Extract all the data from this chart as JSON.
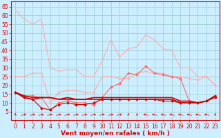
{
  "x": [
    0,
    1,
    2,
    3,
    4,
    5,
    6,
    7,
    8,
    9,
    10,
    11,
    12,
    13,
    14,
    15,
    16,
    17,
    18,
    19,
    20,
    21,
    22,
    23
  ],
  "series": [
    {
      "name": "max_gust",
      "color": "#ffaaaa",
      "linewidth": 0.8,
      "marker": null,
      "markersize": 0,
      "zorder": 2,
      "values": [
        63,
        58,
        55,
        58,
        30,
        28,
        29,
        29,
        25,
        25,
        34,
        46,
        36,
        41,
        42,
        49,
        46,
        41,
        40,
        30,
        30,
        25,
        25,
        20
      ]
    },
    {
      "name": "avg_wind_high",
      "color": "#ffaaaa",
      "linewidth": 0.8,
      "marker": "D",
      "markersize": 1.5,
      "zorder": 2,
      "values": [
        25,
        25,
        27,
        27,
        10,
        16,
        17,
        17,
        16,
        16,
        25,
        25,
        24,
        24,
        27,
        28,
        27,
        27,
        25,
        25,
        24,
        23,
        25,
        20
      ]
    },
    {
      "name": "avg_wind_med",
      "color": "#ff6666",
      "linewidth": 0.8,
      "marker": "D",
      "markersize": 2,
      "zorder": 3,
      "values": [
        16,
        14,
        14,
        13,
        6,
        10,
        11,
        10,
        10,
        9,
        13,
        19,
        21,
        27,
        26,
        31,
        27,
        26,
        25,
        24,
        11,
        10,
        11,
        14
      ]
    },
    {
      "name": "wind_steady1",
      "color": "#cc0000",
      "linewidth": 1.2,
      "marker": null,
      "markersize": 0,
      "zorder": 4,
      "values": [
        16,
        14,
        13,
        13,
        13,
        12,
        13,
        12,
        12,
        13,
        13,
        13,
        13,
        13,
        13,
        13,
        13,
        13,
        13,
        11,
        11,
        10,
        11,
        14
      ]
    },
    {
      "name": "wind_steady2",
      "color": "#cc0000",
      "linewidth": 1.2,
      "marker": null,
      "markersize": 0,
      "zorder": 4,
      "values": [
        16,
        13,
        12,
        13,
        13,
        12,
        12,
        12,
        12,
        12,
        12,
        12,
        12,
        12,
        12,
        12,
        12,
        12,
        12,
        10,
        10,
        10,
        11,
        14
      ]
    },
    {
      "name": "wind_min",
      "color": "#cc0000",
      "linewidth": 0.8,
      "marker": "D",
      "markersize": 2,
      "zorder": 5,
      "values": [
        16,
        13,
        12,
        7,
        6,
        9,
        10,
        9,
        9,
        10,
        12,
        12,
        12,
        12,
        12,
        12,
        12,
        11,
        11,
        10,
        10,
        10,
        11,
        13
      ]
    }
  ],
  "arrows": {
    "angles_deg": [
      90,
      45,
      45,
      45,
      45,
      45,
      45,
      45,
      45,
      45,
      45,
      45,
      45,
      90,
      90,
      135,
      135,
      135,
      135,
      135,
      135,
      135,
      135,
      90
    ]
  },
  "xlabel": "Vent moyen/en rafales ( km/h )",
  "ylim": [
    0,
    68
  ],
  "yticks": [
    5,
    10,
    15,
    20,
    25,
    30,
    35,
    40,
    45,
    50,
    55,
    60,
    65
  ],
  "xlim": [
    -0.5,
    23.5
  ],
  "xticks": [
    0,
    1,
    2,
    3,
    4,
    5,
    6,
    7,
    8,
    9,
    10,
    11,
    12,
    13,
    14,
    15,
    16,
    17,
    18,
    19,
    20,
    21,
    22,
    23
  ],
  "bg_color": "#cceeff",
  "grid_color": "#99cccc",
  "axis_color": "#dd0000",
  "text_color": "#dd0000",
  "xlabel_fontsize": 6.5,
  "tick_fontsize": 5.5
}
